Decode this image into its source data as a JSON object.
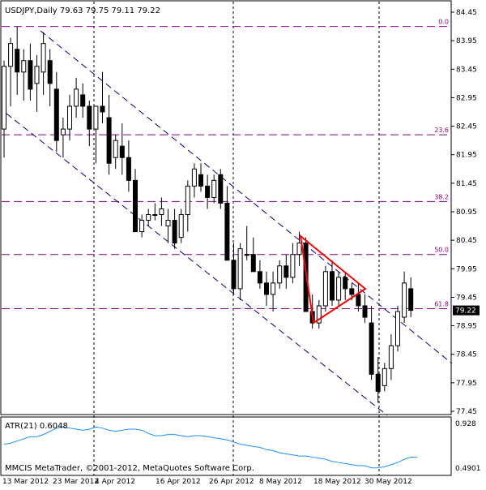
{
  "chart_data": [
    {
      "type": "candlestick",
      "title": "USDJPY,Daily  79.63 79.75 79.11 79.22",
      "symbol": "USDJPY",
      "timeframe": "Daily",
      "ohlc_header": {
        "open": 79.63,
        "high": 79.75,
        "low": 79.11,
        "close": 79.22
      },
      "ylim": [
        77.45,
        84.45
      ],
      "price_ticks": [
        "84.45",
        "83.95",
        "83.45",
        "82.95",
        "82.45",
        "81.95",
        "81.45",
        "80.95",
        "80.45",
        "79.95",
        "79.45",
        "78.95",
        "78.45",
        "77.95",
        "77.45"
      ],
      "date_ticks": [
        "13 Mar 2012",
        "23 Mar 2012",
        "4 Apr 2012",
        "16 Apr 2012",
        "26 Apr 2012",
        "8 May 2012",
        "18 May 2012",
        "30 May 2012"
      ],
      "current_price": "79.22",
      "fib_levels": [
        {
          "label": "0.0",
          "price": 84.2
        },
        {
          "label": "23.6",
          "price": 82.3
        },
        {
          "label": "38.2",
          "price": 81.13
        },
        {
          "label": "50.0",
          "price": 80.2
        },
        {
          "label": "61.8",
          "price": 79.25
        }
      ],
      "candles": [
        {
          "o": 82.4,
          "h": 83.6,
          "l": 81.9,
          "c": 83.5
        },
        {
          "o": 83.5,
          "h": 84.0,
          "l": 82.8,
          "c": 83.9
        },
        {
          "o": 83.8,
          "h": 84.2,
          "l": 83.0,
          "c": 83.4
        },
        {
          "o": 83.4,
          "h": 83.8,
          "l": 82.9,
          "c": 83.6
        },
        {
          "o": 83.6,
          "h": 83.9,
          "l": 82.9,
          "c": 83.1
        },
        {
          "o": 83.2,
          "h": 83.7,
          "l": 82.7,
          "c": 83.5
        },
        {
          "o": 83.4,
          "h": 84.1,
          "l": 83.0,
          "c": 83.9
        },
        {
          "o": 83.6,
          "h": 83.8,
          "l": 82.8,
          "c": 83.2
        },
        {
          "o": 83.1,
          "h": 83.4,
          "l": 82.0,
          "c": 82.2
        },
        {
          "o": 82.3,
          "h": 82.6,
          "l": 81.9,
          "c": 82.4
        },
        {
          "o": 82.4,
          "h": 83.0,
          "l": 82.2,
          "c": 82.8
        },
        {
          "o": 82.8,
          "h": 83.3,
          "l": 82.6,
          "c": 83.1
        },
        {
          "o": 83.0,
          "h": 83.2,
          "l": 82.6,
          "c": 82.8
        },
        {
          "o": 82.8,
          "h": 82.9,
          "l": 82.1,
          "c": 82.4
        },
        {
          "o": 82.4,
          "h": 82.8,
          "l": 81.8,
          "c": 82.8
        },
        {
          "o": 82.8,
          "h": 83.4,
          "l": 82.5,
          "c": 82.7
        },
        {
          "o": 82.6,
          "h": 83.0,
          "l": 81.6,
          "c": 81.8
        },
        {
          "o": 81.9,
          "h": 82.3,
          "l": 81.7,
          "c": 82.2
        },
        {
          "o": 82.1,
          "h": 82.5,
          "l": 81.6,
          "c": 81.9
        },
        {
          "o": 81.9,
          "h": 82.2,
          "l": 81.3,
          "c": 81.5
        },
        {
          "o": 81.5,
          "h": 81.7,
          "l": 80.6,
          "c": 80.6
        },
        {
          "o": 80.6,
          "h": 80.9,
          "l": 80.5,
          "c": 80.8
        },
        {
          "o": 80.8,
          "h": 81.0,
          "l": 80.7,
          "c": 80.9
        },
        {
          "o": 80.9,
          "h": 81.1,
          "l": 80.8,
          "c": 80.9
        },
        {
          "o": 80.9,
          "h": 81.2,
          "l": 80.7,
          "c": 81.0
        },
        {
          "o": 80.7,
          "h": 81.0,
          "l": 80.4,
          "c": 80.8
        },
        {
          "o": 80.8,
          "h": 81.0,
          "l": 80.3,
          "c": 80.4
        },
        {
          "o": 80.5,
          "h": 81.0,
          "l": 80.4,
          "c": 80.9
        },
        {
          "o": 80.9,
          "h": 81.5,
          "l": 80.6,
          "c": 81.4
        },
        {
          "o": 81.4,
          "h": 81.8,
          "l": 81.2,
          "c": 81.7
        },
        {
          "o": 81.6,
          "h": 81.8,
          "l": 81.3,
          "c": 81.4
        },
        {
          "o": 81.4,
          "h": 81.6,
          "l": 81.0,
          "c": 81.2
        },
        {
          "o": 81.2,
          "h": 81.6,
          "l": 81.1,
          "c": 81.5
        },
        {
          "o": 81.6,
          "h": 81.7,
          "l": 81.0,
          "c": 81.1
        },
        {
          "o": 81.1,
          "h": 81.4,
          "l": 80.1,
          "c": 80.1
        },
        {
          "o": 80.1,
          "h": 80.4,
          "l": 79.5,
          "c": 79.6
        },
        {
          "o": 79.6,
          "h": 80.4,
          "l": 79.4,
          "c": 80.3
        },
        {
          "o": 80.2,
          "h": 80.7,
          "l": 80.1,
          "c": 80.2
        },
        {
          "o": 80.2,
          "h": 80.5,
          "l": 79.9,
          "c": 79.9
        },
        {
          "o": 79.9,
          "h": 80.1,
          "l": 79.6,
          "c": 79.7
        },
        {
          "o": 79.7,
          "h": 79.9,
          "l": 79.3,
          "c": 79.5
        },
        {
          "o": 79.5,
          "h": 79.9,
          "l": 79.2,
          "c": 79.7
        },
        {
          "o": 79.7,
          "h": 80.1,
          "l": 79.6,
          "c": 80.0
        },
        {
          "o": 80.0,
          "h": 80.2,
          "l": 79.6,
          "c": 79.8
        },
        {
          "o": 79.8,
          "h": 80.4,
          "l": 79.7,
          "c": 80.2
        },
        {
          "o": 80.2,
          "h": 80.6,
          "l": 80.0,
          "c": 80.4
        },
        {
          "o": 80.4,
          "h": 80.5,
          "l": 79.2,
          "c": 79.2
        },
        {
          "o": 79.2,
          "h": 79.5,
          "l": 78.9,
          "c": 79.0
        },
        {
          "o": 79.0,
          "h": 79.4,
          "l": 78.9,
          "c": 79.3
        },
        {
          "o": 79.3,
          "h": 80.0,
          "l": 79.2,
          "c": 79.9
        },
        {
          "o": 79.9,
          "h": 80.1,
          "l": 79.3,
          "c": 79.4
        },
        {
          "o": 79.4,
          "h": 79.9,
          "l": 79.3,
          "c": 79.8
        },
        {
          "o": 79.8,
          "h": 79.9,
          "l": 79.4,
          "c": 79.6
        },
        {
          "o": 79.6,
          "h": 79.7,
          "l": 79.4,
          "c": 79.5
        },
        {
          "o": 79.5,
          "h": 79.7,
          "l": 79.2,
          "c": 79.3
        },
        {
          "o": 79.3,
          "h": 79.5,
          "l": 79.0,
          "c": 79.1
        },
        {
          "o": 79.0,
          "h": 79.3,
          "l": 78.0,
          "c": 78.1
        },
        {
          "o": 78.1,
          "h": 78.4,
          "l": 77.6,
          "c": 77.8
        },
        {
          "o": 77.9,
          "h": 78.3,
          "l": 77.8,
          "c": 78.2
        },
        {
          "o": 78.2,
          "h": 78.8,
          "l": 78.0,
          "c": 78.6
        },
        {
          "o": 78.6,
          "h": 79.3,
          "l": 78.5,
          "c": 79.2
        },
        {
          "o": 79.1,
          "h": 79.9,
          "l": 79.0,
          "c": 79.7
        },
        {
          "o": 79.6,
          "h": 79.8,
          "l": 79.1,
          "c": 79.22
        }
      ]
    },
    {
      "type": "line",
      "title": "ATR(21) 0.6048",
      "indicator": "ATR(21)",
      "current_value": "0.6048",
      "ticks": [
        "0.928",
        "0.4901"
      ],
      "ylim": [
        0.4901,
        0.928
      ],
      "values": [
        0.72,
        0.73,
        0.75,
        0.77,
        0.79,
        0.79,
        0.81,
        0.84,
        0.87,
        0.88,
        0.87,
        0.86,
        0.85,
        0.86,
        0.88,
        0.87,
        0.85,
        0.84,
        0.85,
        0.86,
        0.86,
        0.85,
        0.82,
        0.8,
        0.8,
        0.81,
        0.81,
        0.8,
        0.79,
        0.8,
        0.8,
        0.79,
        0.78,
        0.77,
        0.76,
        0.74,
        0.72,
        0.71,
        0.7,
        0.69,
        0.67,
        0.66,
        0.64,
        0.63,
        0.62,
        0.61,
        0.61,
        0.6,
        0.59,
        0.58,
        0.56,
        0.55,
        0.54,
        0.53,
        0.52,
        0.52,
        0.5,
        0.5,
        0.51,
        0.53,
        0.55,
        0.58,
        0.6,
        0.6
      ]
    }
  ],
  "footer": {
    "copyright": "MMCIS MetaTrader, ©2001-2012, MetaQuotes Software Corp."
  },
  "colors": {
    "candle": "#000000",
    "fib": "#8b008b",
    "channel": "#00008b",
    "triangle": "#ff0000",
    "atr": "#1e90ff",
    "price_label_bg": "#000000"
  }
}
